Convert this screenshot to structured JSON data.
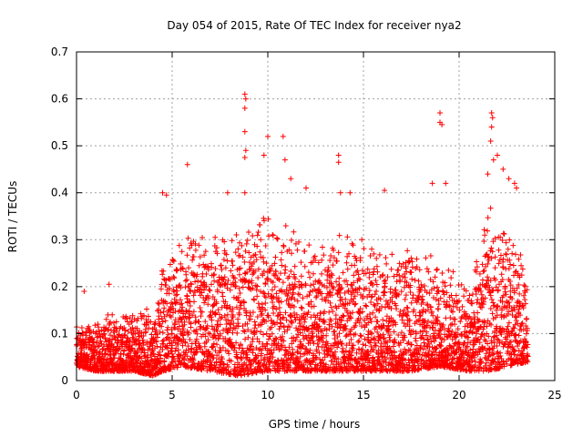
{
  "chart_data": {
    "type": "scatter",
    "title": "Day 054 of 2015, Rate Of TEC Index for receiver nya2",
    "xlabel": "GPS time / hours",
    "ylabel": "ROTI / TECUs",
    "xlim": [
      0,
      25
    ],
    "ylim": [
      0,
      0.7
    ],
    "xticks": [
      "0",
      "5",
      "10",
      "15",
      "20",
      "25"
    ],
    "yticks": [
      "0",
      "0.1",
      "0.2",
      "0.3",
      "0.4",
      "0.5",
      "0.6",
      "0.7"
    ],
    "grid": true,
    "marker": "+",
    "color": "#ff0000",
    "series": [
      {
        "points_dense_envelope": [
          {
            "x": 0.0,
            "ymin": 0.03,
            "ymax": 0.12
          },
          {
            "x": 1.0,
            "ymin": 0.02,
            "ymax": 0.13
          },
          {
            "x": 2.0,
            "ymin": 0.02,
            "ymax": 0.15
          },
          {
            "x": 3.0,
            "ymin": 0.02,
            "ymax": 0.16
          },
          {
            "x": 4.0,
            "ymin": 0.01,
            "ymax": 0.15
          },
          {
            "x": 4.5,
            "ymin": 0.02,
            "ymax": 0.26
          },
          {
            "x": 5.5,
            "ymin": 0.03,
            "ymax": 0.3
          },
          {
            "x": 7.0,
            "ymin": 0.02,
            "ymax": 0.32
          },
          {
            "x": 8.5,
            "ymin": 0.01,
            "ymax": 0.33
          },
          {
            "x": 10.0,
            "ymin": 0.02,
            "ymax": 0.35
          },
          {
            "x": 11.5,
            "ymin": 0.02,
            "ymax": 0.33
          },
          {
            "x": 13.0,
            "ymin": 0.02,
            "ymax": 0.3
          },
          {
            "x": 14.5,
            "ymin": 0.02,
            "ymax": 0.32
          },
          {
            "x": 16.0,
            "ymin": 0.02,
            "ymax": 0.27
          },
          {
            "x": 17.5,
            "ymin": 0.02,
            "ymax": 0.28
          },
          {
            "x": 19.0,
            "ymin": 0.03,
            "ymax": 0.27
          },
          {
            "x": 20.5,
            "ymin": 0.02,
            "ymax": 0.2
          },
          {
            "x": 21.5,
            "ymin": 0.02,
            "ymax": 0.38
          },
          {
            "x": 22.5,
            "ymin": 0.03,
            "ymax": 0.32
          },
          {
            "x": 23.6,
            "ymin": 0.04,
            "ymax": 0.24
          }
        ],
        "outliers": [
          {
            "x": 0.4,
            "y": 0.19
          },
          {
            "x": 1.7,
            "y": 0.205
          },
          {
            "x": 4.5,
            "y": 0.4
          },
          {
            "x": 4.7,
            "y": 0.395
          },
          {
            "x": 5.8,
            "y": 0.46
          },
          {
            "x": 7.9,
            "y": 0.4
          },
          {
            "x": 8.8,
            "y": 0.61
          },
          {
            "x": 8.85,
            "y": 0.6
          },
          {
            "x": 8.8,
            "y": 0.58
          },
          {
            "x": 8.8,
            "y": 0.53
          },
          {
            "x": 8.85,
            "y": 0.49
          },
          {
            "x": 8.8,
            "y": 0.475
          },
          {
            "x": 8.8,
            "y": 0.4
          },
          {
            "x": 9.8,
            "y": 0.48
          },
          {
            "x": 10.0,
            "y": 0.52
          },
          {
            "x": 10.8,
            "y": 0.52
          },
          {
            "x": 10.9,
            "y": 0.47
          },
          {
            "x": 11.2,
            "y": 0.43
          },
          {
            "x": 12.0,
            "y": 0.41
          },
          {
            "x": 13.7,
            "y": 0.48
          },
          {
            "x": 13.7,
            "y": 0.465
          },
          {
            "x": 13.8,
            "y": 0.4
          },
          {
            "x": 14.3,
            "y": 0.4
          },
          {
            "x": 16.1,
            "y": 0.405
          },
          {
            "x": 18.6,
            "y": 0.42
          },
          {
            "x": 19.0,
            "y": 0.57
          },
          {
            "x": 19.0,
            "y": 0.55
          },
          {
            "x": 19.1,
            "y": 0.545
          },
          {
            "x": 19.3,
            "y": 0.42
          },
          {
            "x": 21.5,
            "y": 0.44
          },
          {
            "x": 21.7,
            "y": 0.57
          },
          {
            "x": 21.75,
            "y": 0.56
          },
          {
            "x": 21.7,
            "y": 0.54
          },
          {
            "x": 21.65,
            "y": 0.51
          },
          {
            "x": 21.8,
            "y": 0.47
          },
          {
            "x": 22.0,
            "y": 0.48
          },
          {
            "x": 22.3,
            "y": 0.45
          },
          {
            "x": 22.6,
            "y": 0.43
          },
          {
            "x": 22.9,
            "y": 0.42
          },
          {
            "x": 23.0,
            "y": 0.41
          }
        ]
      }
    ]
  }
}
